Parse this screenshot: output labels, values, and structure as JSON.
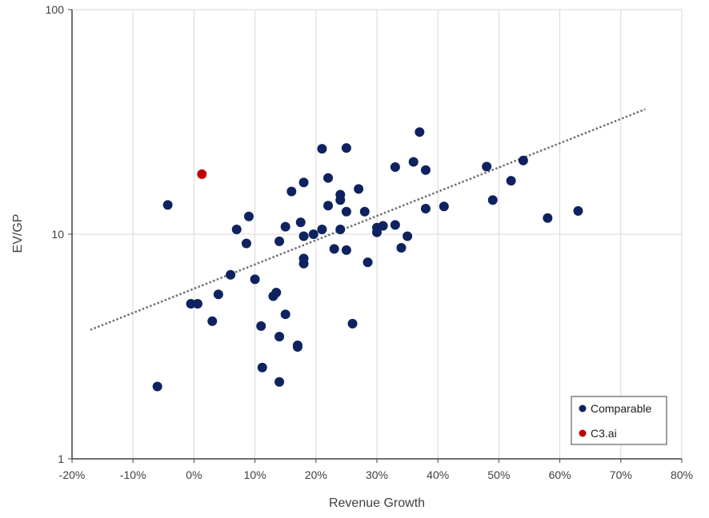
{
  "chart_data": {
    "type": "scatter",
    "title": "",
    "xlabel": "Revenue Growth",
    "ylabel": "EV/GP",
    "x_unit": "percent",
    "xlim": [
      -20,
      80
    ],
    "ylim": [
      1,
      100
    ],
    "y_scale": "log",
    "x_ticks": [
      "-20%",
      "-10%",
      "0%",
      "10%",
      "20%",
      "30%",
      "40%",
      "50%",
      "60%",
      "70%",
      "80%"
    ],
    "y_ticks": [
      "1",
      "10",
      "100"
    ],
    "grid": true,
    "legend_position": "bottom-right",
    "colors": {
      "Comparable": "#0f2260",
      "C3.ai": "#c00000",
      "trendline": "#707070"
    },
    "series": [
      {
        "name": "Comparable",
        "points": [
          {
            "x": -6,
            "y": 2.1
          },
          {
            "x": -4.3,
            "y": 13.5
          },
          {
            "x": -0.5,
            "y": 4.9
          },
          {
            "x": 0.6,
            "y": 4.9
          },
          {
            "x": 3,
            "y": 4.1
          },
          {
            "x": 4,
            "y": 5.4
          },
          {
            "x": 6,
            "y": 6.6
          },
          {
            "x": 7,
            "y": 10.5
          },
          {
            "x": 8.6,
            "y": 9.1
          },
          {
            "x": 9,
            "y": 12
          },
          {
            "x": 10,
            "y": 6.3
          },
          {
            "x": 11,
            "y": 3.9
          },
          {
            "x": 11.2,
            "y": 2.55
          },
          {
            "x": 13,
            "y": 5.3
          },
          {
            "x": 13.5,
            "y": 5.5
          },
          {
            "x": 14,
            "y": 9.3
          },
          {
            "x": 14,
            "y": 3.5
          },
          {
            "x": 14,
            "y": 2.2
          },
          {
            "x": 15,
            "y": 10.8
          },
          {
            "x": 15,
            "y": 4.4
          },
          {
            "x": 16,
            "y": 15.5
          },
          {
            "x": 17,
            "y": 3.2
          },
          {
            "x": 17,
            "y": 3.15
          },
          {
            "x": 17.5,
            "y": 11.3
          },
          {
            "x": 18,
            "y": 17
          },
          {
            "x": 18,
            "y": 9.8
          },
          {
            "x": 18,
            "y": 7.8
          },
          {
            "x": 18,
            "y": 7.4
          },
          {
            "x": 19.6,
            "y": 10
          },
          {
            "x": 21,
            "y": 24
          },
          {
            "x": 21,
            "y": 10.5
          },
          {
            "x": 22,
            "y": 17.8
          },
          {
            "x": 22,
            "y": 13.4
          },
          {
            "x": 23,
            "y": 8.6
          },
          {
            "x": 24,
            "y": 15
          },
          {
            "x": 24,
            "y": 14.2
          },
          {
            "x": 24,
            "y": 10.5
          },
          {
            "x": 25,
            "y": 24.2
          },
          {
            "x": 25,
            "y": 12.6
          },
          {
            "x": 25,
            "y": 8.5
          },
          {
            "x": 26,
            "y": 4
          },
          {
            "x": 27,
            "y": 15.9
          },
          {
            "x": 28,
            "y": 12.6
          },
          {
            "x": 28.5,
            "y": 7.5
          },
          {
            "x": 30,
            "y": 10.7
          },
          {
            "x": 30,
            "y": 10.2
          },
          {
            "x": 31,
            "y": 10.9
          },
          {
            "x": 33,
            "y": 19.9
          },
          {
            "x": 33,
            "y": 11
          },
          {
            "x": 34,
            "y": 8.7
          },
          {
            "x": 35,
            "y": 9.8
          },
          {
            "x": 36,
            "y": 21
          },
          {
            "x": 37,
            "y": 28.5
          },
          {
            "x": 38,
            "y": 19.3
          },
          {
            "x": 38,
            "y": 13
          },
          {
            "x": 41,
            "y": 13.3
          },
          {
            "x": 48,
            "y": 20
          },
          {
            "x": 49,
            "y": 14.2
          },
          {
            "x": 52,
            "y": 17.3
          },
          {
            "x": 54,
            "y": 21.3
          },
          {
            "x": 58,
            "y": 11.8
          },
          {
            "x": 63,
            "y": 12.7
          }
        ]
      },
      {
        "name": "C3.ai",
        "points": [
          {
            "x": 1.3,
            "y": 18.5
          }
        ]
      }
    ],
    "trendline": {
      "style": "dotted",
      "type": "exponential",
      "from": {
        "x": -17,
        "y": 3.75
      },
      "to": {
        "x": 74,
        "y": 36
      }
    }
  }
}
